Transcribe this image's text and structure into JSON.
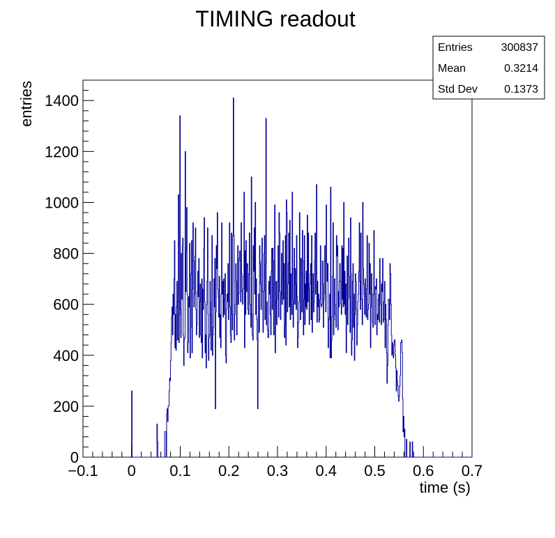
{
  "chart_data": {
    "type": "histogram",
    "title": "TIMING readout",
    "xlabel": "time (s)",
    "ylabel": "entries",
    "xlim": [
      -0.1,
      0.7
    ],
    "ylim": [
      0,
      1480
    ],
    "x_ticks": [
      "−0.1",
      "0",
      "0.1",
      "0.2",
      "0.3",
      "0.4",
      "0.5",
      "0.6",
      "0.7"
    ],
    "y_ticks": [
      "0",
      "200",
      "400",
      "600",
      "800",
      "1000",
      "1200",
      "1400"
    ],
    "grid": false,
    "line_color": "#000099",
    "stats": [
      {
        "label": "Entries",
        "value": "300837"
      },
      {
        "label": "Mean",
        "value": "0.3214"
      },
      {
        "label": "Std Dev",
        "value": "0.1373"
      }
    ],
    "bin_width": 0.001,
    "bins_x_start": 0.0,
    "series": [
      {
        "values": [
          260,
          0,
          0,
          0,
          0,
          0,
          0,
          0,
          0,
          0,
          0,
          0,
          0,
          0,
          0,
          0,
          0,
          0,
          0,
          0,
          0,
          0,
          0,
          0,
          0,
          0,
          0,
          0,
          0,
          0,
          0,
          0,
          0,
          0,
          0,
          0,
          0,
          0,
          0,
          0,
          0,
          0,
          0,
          0,
          0,
          0,
          0,
          0,
          0,
          0,
          0,
          0,
          130,
          60,
          0,
          0,
          0,
          0,
          0,
          0,
          0,
          0,
          0,
          0,
          0,
          0,
          0,
          0,
          100,
          100,
          100,
          0,
          170,
          190,
          140,
          200,
          200,
          260,
          310,
          300,
          380,
          450,
          550,
          590,
          480,
          640,
          560,
          700,
          850,
          430,
          560,
          420,
          590,
          690,
          460,
          610,
          1030,
          450,
          560,
          1340,
          580,
          470,
          800,
          620,
          830,
          860,
          480,
          360,
          460,
          470,
          1200,
          650,
          810,
          980,
          640,
          410,
          450,
          630,
          590,
          840,
          390,
          510,
          720,
          850,
          410,
          660,
          920,
          770,
          590,
          640,
          790,
          900,
          580,
          480,
          520,
          650,
          730,
          630,
          780,
          470,
          610,
          680,
          480,
          450,
          700,
          390,
          660,
          580,
          820,
          940,
          610,
          410,
          480,
          350,
          600,
          690,
          900,
          560,
          380,
          470,
          480,
          690,
          560,
          420,
          610,
          870,
          400,
          480,
          510,
          700,
          590,
          780,
          190,
          570,
          830,
          740,
          960,
          660,
          630,
          550,
          710,
          470,
          560,
          430,
          640,
          920,
          640,
          690,
          550,
          700,
          560,
          620,
          720,
          400,
          370,
          580,
          640,
          610,
          760,
          540,
          640,
          920,
          590,
          480,
          450,
          880,
          560,
          500,
          870,
          1410,
          870,
          460,
          560,
          600,
          760,
          690,
          480,
          600,
          830,
          600,
          640,
          780,
          810,
          770,
          610,
          920,
          720,
          650,
          600,
          660,
          710,
          1040,
          430,
          810,
          560,
          850,
          650,
          750,
          760,
          580,
          560,
          720,
          880,
          600,
          560,
          510,
          1100,
          560,
          480,
          460,
          830,
          730,
          900,
          640,
          1000,
          560,
          700,
          540,
          460,
          190,
          550,
          640,
          490,
          830,
          760,
          680,
          580,
          770,
          860,
          650,
          490,
          650,
          800,
          870,
          540,
          760,
          1330,
          520,
          610,
          500,
          470,
          470,
          690,
          640,
          710,
          560,
          480,
          730,
          820,
          580,
          820,
          770,
          480,
          680,
          990,
          410,
          610,
          690,
          520,
          620,
          690,
          830,
          550,
          960,
          880,
          650,
          540,
          640,
          800,
          600,
          710,
          850,
          620,
          760,
          470,
          520,
          870,
          440,
          1010,
          960,
          570,
          680,
          760,
          880,
          590,
          930,
          540,
          720,
          600,
          560,
          1040,
          620,
          510,
          740,
          820,
          600,
          740,
          680,
          580,
          870,
          630,
          430,
          470,
          530,
          610,
          960,
          780,
          540,
          780,
          720,
          570,
          890,
          770,
          480,
          620,
          870,
          520,
          680,
          590,
          730,
          580,
          950,
          610,
          880,
          660,
          520,
          680,
          720,
          760,
          540,
          870,
          490,
          650,
          720,
          570,
          610,
          770,
          880,
          640,
          720,
          1070,
          530,
          690,
          590,
          640,
          530,
          540,
          620,
          830,
          600,
          590,
          600,
          770,
          680,
          510,
          620,
          770,
          830,
          640,
          570,
          990,
          760,
          690,
          760,
          430,
          540,
          550,
          640,
          390,
          1060,
          390,
          460,
          550,
          710,
          920,
          480,
          540,
          700,
          600,
          560,
          510,
          870,
          790,
          830,
          500,
          650,
          590,
          690,
          760,
          690,
          600,
          560,
          830,
          620,
          820,
          590,
          1000,
          600,
          730,
          560,
          680,
          410,
          580,
          790,
          520,
          620,
          860,
          710,
          630,
          490,
          940,
          720,
          400,
          460,
          690,
          760,
          510,
          640,
          380,
          560,
          720,
          690,
          580,
          440,
          520,
          610,
          640,
          730,
          920,
          690,
          580,
          880,
          620,
          620,
          520,
          1000,
          740,
          680,
          640,
          560,
          700,
          630,
          550,
          660,
          870,
          540,
          580,
          600,
          840,
          640,
          760,
          430,
          590,
          720,
          640,
          530,
          510,
          640,
          890,
          640,
          520,
          670,
          660,
          700,
          480,
          560,
          540,
          620,
          640,
          530,
          780,
          690,
          600,
          520,
          680,
          650,
          780,
          530,
          540,
          610,
          690,
          430,
          600,
          540,
          410,
          290,
          360,
          520,
          620,
          620,
          540,
          760,
          720,
          600,
          480,
          400,
          450,
          410,
          390,
          440,
          460,
          460,
          400,
          350,
          260,
          340,
          300,
          280,
          240,
          220,
          240,
          280,
          320,
          450,
          450,
          460,
          410,
          230,
          100,
          160,
          80,
          110,
          0,
          0,
          0,
          70,
          0,
          0,
          0,
          0,
          0,
          0,
          60,
          0,
          0,
          0,
          0,
          60,
          0,
          0,
          0,
          0,
          0,
          0,
          0,
          0,
          0,
          0,
          0
        ]
      }
    ]
  }
}
